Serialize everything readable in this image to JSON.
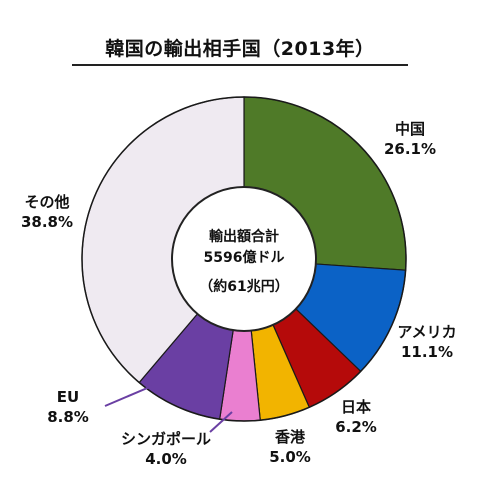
{
  "chart_data": {
    "type": "pie",
    "title": "韓国の輸出相手国（2013年）",
    "center": {
      "line1": "輸出額合計",
      "line2": "5596億ドル",
      "line3": "（約61兆円）"
    },
    "slices": [
      {
        "label": "中国",
        "value": 26.1,
        "display": "26.1%",
        "color": "#4f7a28"
      },
      {
        "label": "アメリカ",
        "value": 11.1,
        "display": "11.1%",
        "color": "#0b62c6"
      },
      {
        "label": "日本",
        "value": 6.2,
        "display": "6.2%",
        "color": "#b50a0a"
      },
      {
        "label": "香港",
        "value": 5.0,
        "display": "5.0%",
        "color": "#f2b400"
      },
      {
        "label": "シンガポール",
        "value": 4.0,
        "display": "4.0%",
        "color": "#ea7fd0"
      },
      {
        "label": "EU",
        "value": 8.8,
        "display": "8.8%",
        "color": "#6a3fa3"
      },
      {
        "label": "その他",
        "value": 38.8,
        "display": "38.8%",
        "color": "#efeaf1"
      }
    ]
  }
}
